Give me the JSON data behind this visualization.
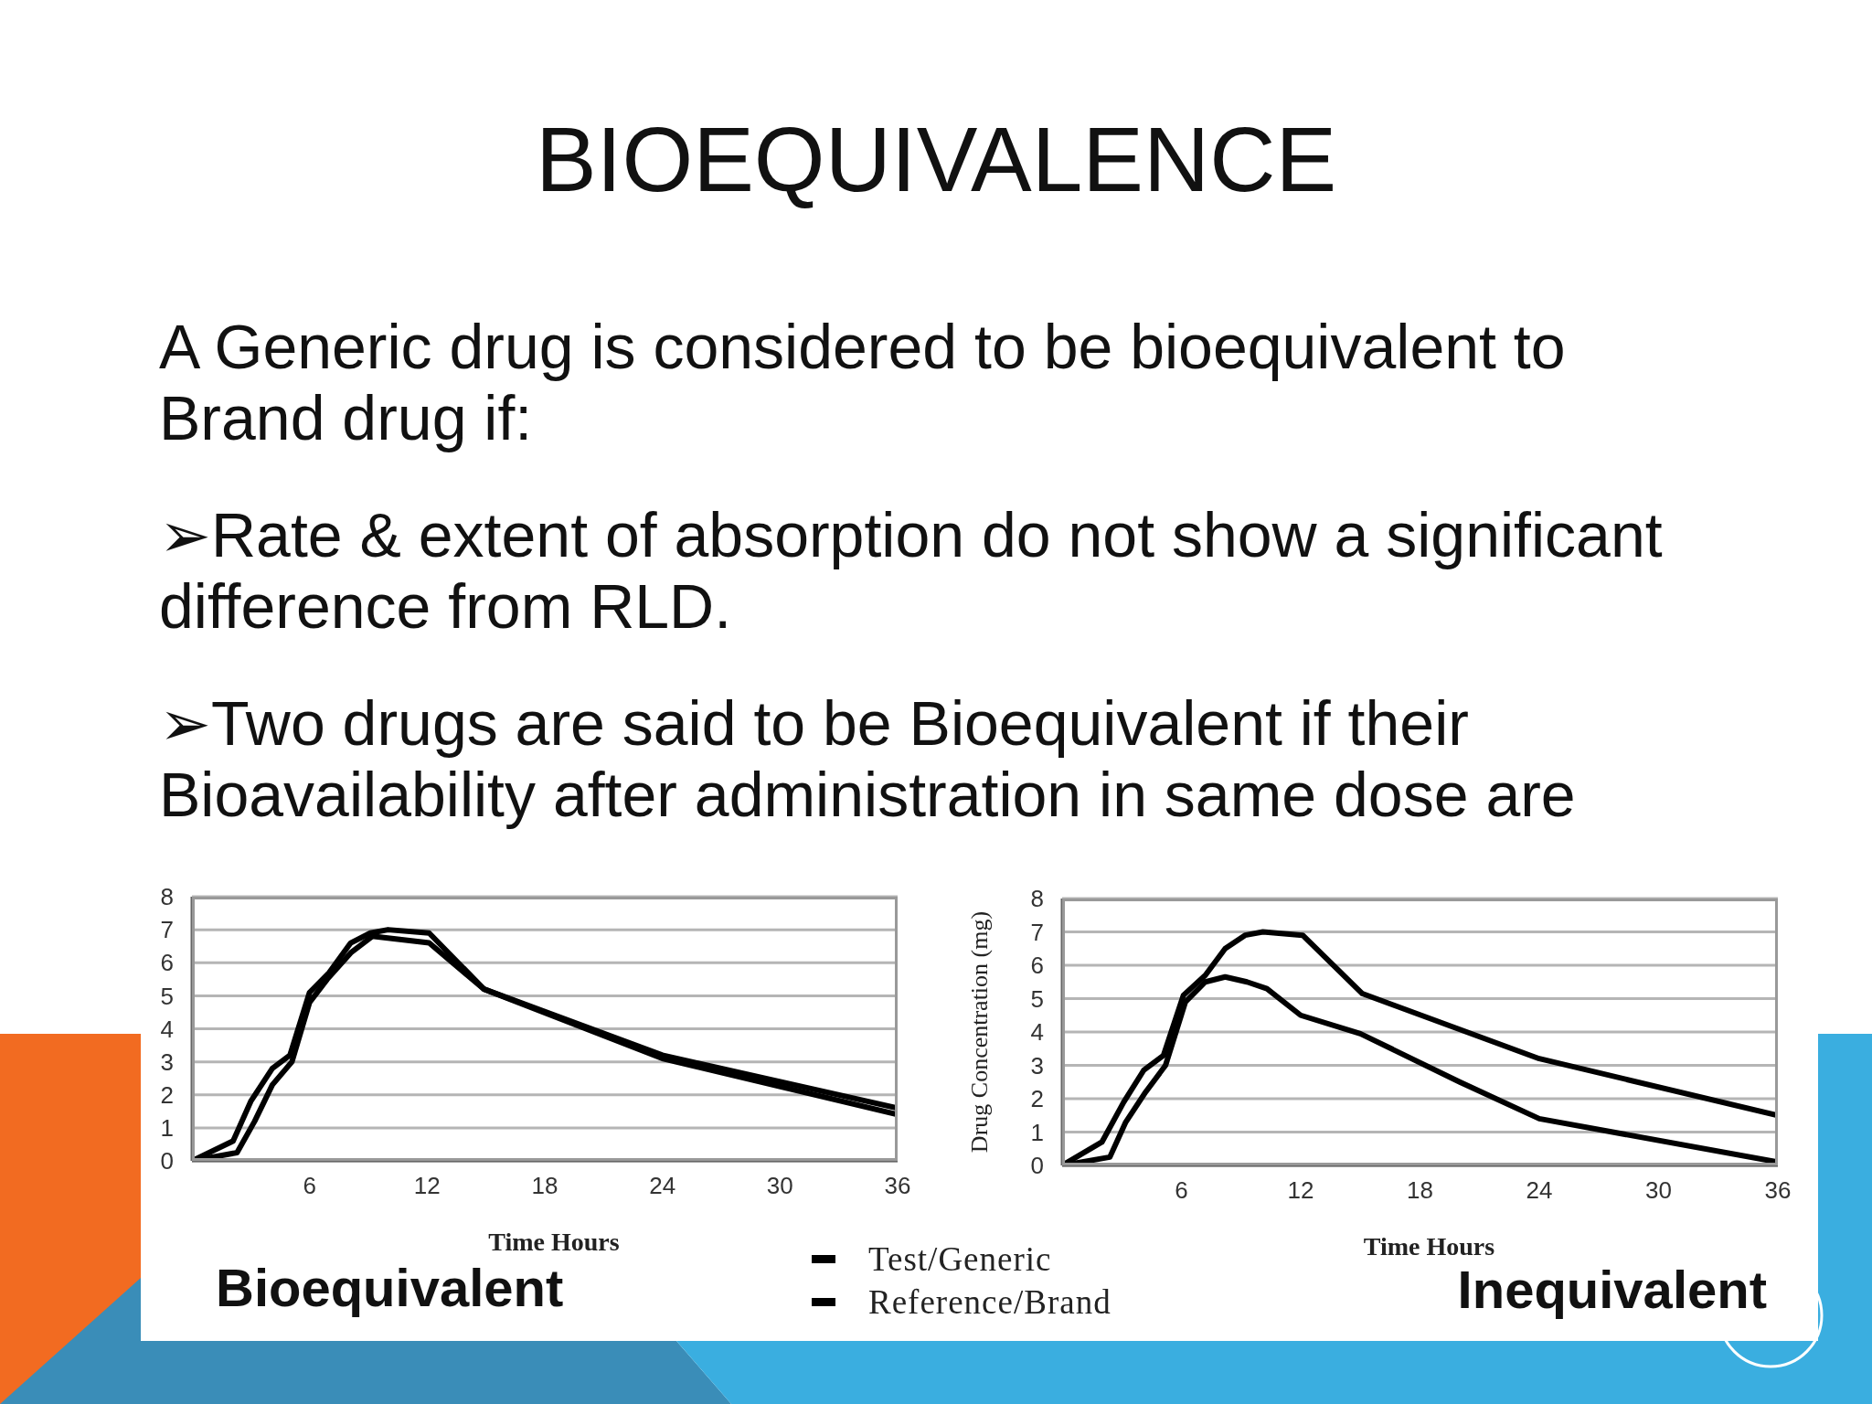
{
  "chart_data": [
    {
      "type": "other",
      "title": "BIOEQUIVALENCE",
      "annotations": [
        "A Generic drug is considered to be bioequivalent to Brand drug if:",
        "➢Rate & extent of absorption do not show a significant difference from RLD.",
        "➢Two drugs are said to be Bioequivalent if their Bioavailability after administration in same dose are"
      ]
    },
    {
      "type": "line",
      "title": "Bioequivalent",
      "xlabel": "Time Hours",
      "xlim": [
        0,
        36
      ],
      "xticks": [
        6,
        12,
        18,
        24,
        30,
        36
      ],
      "ylim": [
        0,
        8
      ],
      "yticks": [
        0,
        1,
        2,
        3,
        4,
        5,
        6,
        7,
        8
      ],
      "grid": "y",
      "legend": "bottom right",
      "series": [
        {
          "name": "Test/Generic",
          "color": "#000000",
          "x": [
            0,
            2.3,
            3.2,
            4.1,
            5.1,
            6,
            6.9,
            8.1,
            9.2,
            10,
            12.1,
            14.9,
            24,
            36
          ],
          "values": [
            0,
            0.25,
            1.2,
            2.3,
            3.0,
            4.8,
            5.5,
            6.3,
            6.8,
            6.75,
            6.6,
            5.2,
            3.1,
            1.4
          ]
        },
        {
          "name": "Reference/Brand",
          "color": "#000000",
          "x": [
            0,
            2.1,
            3,
            4.1,
            5,
            6,
            7,
            8.1,
            9.1,
            10,
            12.1,
            14.9,
            24,
            36
          ],
          "values": [
            0,
            0.6,
            1.8,
            2.8,
            3.2,
            5.1,
            5.7,
            6.6,
            6.9,
            7.0,
            6.9,
            5.2,
            3.2,
            1.6
          ]
        }
      ]
    },
    {
      "type": "line",
      "title": "Inequivalent",
      "xlabel": "Time Hours",
      "ylabel": "Drug Concentration (mg)",
      "xlim": [
        0,
        36
      ],
      "xticks": [
        6,
        12,
        18,
        24,
        30,
        36
      ],
      "ylim": [
        0,
        8
      ],
      "yticks": [
        0,
        1,
        2,
        3,
        4,
        5,
        6,
        7,
        8
      ],
      "grid": "y",
      "series": [
        {
          "color": "#000000",
          "x": [
            0,
            2.4,
            3.2,
            4.2,
            5.2,
            6.2,
            7.2,
            8.2,
            9.3,
            10.3,
            12,
            15,
            20,
            24,
            36
          ],
          "values": [
            0,
            0.25,
            1.3,
            2.2,
            3.0,
            4.9,
            5.5,
            5.65,
            5.5,
            5.3,
            4.5,
            3.95,
            2.5,
            1.4,
            0.1
          ]
        },
        {
          "color": "#000000",
          "x": [
            0,
            2,
            3.1,
            4.1,
            5.1,
            6.1,
            7.2,
            8.2,
            9.2,
            10.1,
            12.1,
            15.1,
            24,
            36
          ],
          "values": [
            0,
            0.7,
            1.9,
            2.85,
            3.3,
            5.1,
            5.7,
            6.5,
            6.9,
            7.0,
            6.9,
            5.15,
            3.2,
            1.5
          ]
        }
      ]
    }
  ]
}
